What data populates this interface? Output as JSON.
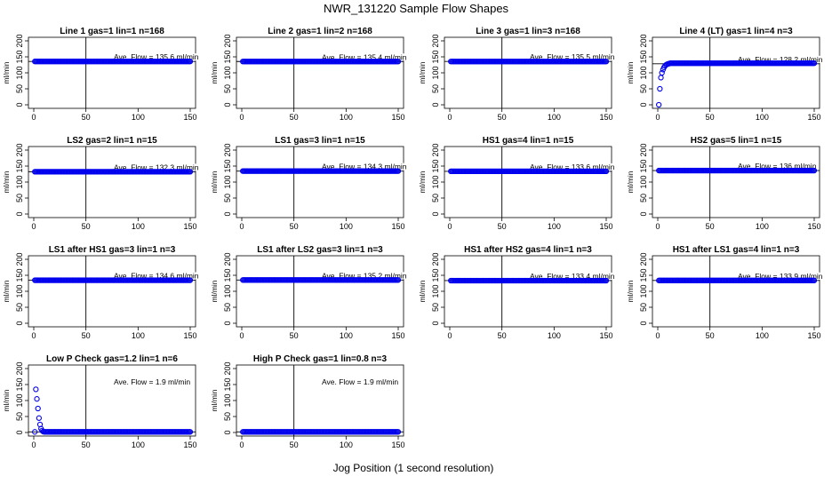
{
  "title": "NWR_131220  Sample Flow Shapes",
  "xlabel": "Jog Position (1 second resolution)",
  "colors": {
    "points": "#0000ee",
    "axis": "#000000",
    "background": "#ffffff"
  },
  "chart_data": [
    {
      "type": "scatter",
      "title": "Line 1 gas=1 lin=1 n=168",
      "ylabel": "ml/min",
      "ave_text": "Ave. Flow = 135.6  ml/min",
      "level": 135.6,
      "xlim": [
        0,
        150
      ],
      "ylim": [
        0,
        200
      ],
      "xticks": [
        0,
        50,
        100,
        150
      ],
      "yticks": [
        0,
        50,
        100,
        150,
        200
      ],
      "vline": 50,
      "hline": 135.6,
      "rise": []
    },
    {
      "type": "scatter",
      "title": "Line 2 gas=1 lin=2 n=168",
      "ylabel": "ml/min",
      "ave_text": "Ave. Flow = 135.4  ml/min",
      "level": 135.4,
      "xlim": [
        0,
        150
      ],
      "ylim": [
        0,
        200
      ],
      "xticks": [
        0,
        50,
        100,
        150
      ],
      "yticks": [
        0,
        50,
        100,
        150,
        200
      ],
      "vline": 50,
      "hline": 135.4,
      "rise": []
    },
    {
      "type": "scatter",
      "title": "Line 3 gas=1 lin=3 n=168",
      "ylabel": "ml/min",
      "ave_text": "Ave. Flow = 135.5  ml/min",
      "level": 135.5,
      "xlim": [
        0,
        150
      ],
      "ylim": [
        0,
        200
      ],
      "xticks": [
        0,
        50,
        100,
        150
      ],
      "yticks": [
        0,
        50,
        100,
        150,
        200
      ],
      "vline": 50,
      "hline": 135.5,
      "rise": []
    },
    {
      "type": "scatter",
      "title": "Line 4 (LT) gas=1 lin=4 n=3",
      "ylabel": "ml/min",
      "ave_text": "Ave. Flow = 128.2  ml/min",
      "level": 130,
      "xlim": [
        0,
        150
      ],
      "ylim": [
        0,
        200
      ],
      "xticks": [
        0,
        50,
        100,
        150
      ],
      "yticks": [
        0,
        50,
        100,
        150,
        200
      ],
      "vline": 50,
      "hline": 128.2,
      "rise": [
        [
          1,
          0
        ],
        [
          2,
          50
        ],
        [
          3,
          85
        ],
        [
          4,
          100
        ],
        [
          5,
          110
        ],
        [
          6,
          117
        ],
        [
          7,
          122
        ],
        [
          8,
          125
        ],
        [
          9,
          127
        ],
        [
          10,
          128
        ],
        [
          11,
          129
        ]
      ]
    },
    {
      "type": "scatter",
      "title": "LS2 gas=2 lin=1 n=15",
      "ylabel": "ml/min",
      "ave_text": "Ave. Flow = 132.3  ml/min",
      "level": 132.3,
      "xlim": [
        0,
        150
      ],
      "ylim": [
        0,
        200
      ],
      "xticks": [
        0,
        50,
        100,
        150
      ],
      "yticks": [
        0,
        50,
        100,
        150,
        200
      ],
      "vline": 50,
      "hline": 132.3,
      "rise": []
    },
    {
      "type": "scatter",
      "title": "LS1 gas=3 lin=1 n=15",
      "ylabel": "ml/min",
      "ave_text": "Ave. Flow = 134.3  ml/min",
      "level": 134.3,
      "xlim": [
        0,
        150
      ],
      "ylim": [
        0,
        200
      ],
      "xticks": [
        0,
        50,
        100,
        150
      ],
      "yticks": [
        0,
        50,
        100,
        150,
        200
      ],
      "vline": 50,
      "hline": 134.3,
      "rise": []
    },
    {
      "type": "scatter",
      "title": "HS1 gas=4 lin=1 n=15",
      "ylabel": "ml/min",
      "ave_text": "Ave. Flow = 133.6  ml/min",
      "level": 133.6,
      "xlim": [
        0,
        150
      ],
      "ylim": [
        0,
        200
      ],
      "xticks": [
        0,
        50,
        100,
        150
      ],
      "yticks": [
        0,
        50,
        100,
        150,
        200
      ],
      "vline": 50,
      "hline": 133.6,
      "rise": []
    },
    {
      "type": "scatter",
      "title": "HS2 gas=5 lin=1 n=15",
      "ylabel": "ml/min",
      "ave_text": "Ave. Flow = 136  ml/min",
      "level": 136,
      "xlim": [
        0,
        150
      ],
      "ylim": [
        0,
        200
      ],
      "xticks": [
        0,
        50,
        100,
        150
      ],
      "yticks": [
        0,
        50,
        100,
        150,
        200
      ],
      "vline": 50,
      "hline": 136,
      "rise": []
    },
    {
      "type": "scatter",
      "title": "LS1 after HS1 gas=3 lin=1 n=3",
      "ylabel": "ml/min",
      "ave_text": "Ave. Flow = 134.6  ml/min",
      "level": 134.6,
      "xlim": [
        0,
        150
      ],
      "ylim": [
        0,
        200
      ],
      "xticks": [
        0,
        50,
        100,
        150
      ],
      "yticks": [
        0,
        50,
        100,
        150,
        200
      ],
      "vline": 50,
      "hline": 134.6,
      "rise": []
    },
    {
      "type": "scatter",
      "title": "LS1 after LS2 gas=3 lin=1 n=3",
      "ylabel": "ml/min",
      "ave_text": "Ave. Flow = 135.2  ml/min",
      "level": 135.2,
      "xlim": [
        0,
        150
      ],
      "ylim": [
        0,
        200
      ],
      "xticks": [
        0,
        50,
        100,
        150
      ],
      "yticks": [
        0,
        50,
        100,
        150,
        200
      ],
      "vline": 50,
      "hline": 135.2,
      "rise": []
    },
    {
      "type": "scatter",
      "title": "HS1 after HS2 gas=4 lin=1 n=3",
      "ylabel": "ml/min",
      "ave_text": "Ave. Flow = 133.4  ml/min",
      "level": 133.4,
      "xlim": [
        0,
        150
      ],
      "ylim": [
        0,
        200
      ],
      "xticks": [
        0,
        50,
        100,
        150
      ],
      "yticks": [
        0,
        50,
        100,
        150,
        200
      ],
      "vline": 50,
      "hline": 133.4,
      "rise": []
    },
    {
      "type": "scatter",
      "title": "HS1 after LS1 gas=4 lin=1 n=3",
      "ylabel": "ml/min",
      "ave_text": "Ave. Flow = 133.9  ml/min",
      "level": 133.9,
      "xlim": [
        0,
        150
      ],
      "ylim": [
        0,
        200
      ],
      "xticks": [
        0,
        50,
        100,
        150
      ],
      "yticks": [
        0,
        50,
        100,
        150,
        200
      ],
      "vline": 50,
      "hline": 133.9,
      "rise": []
    },
    {
      "type": "scatter",
      "title": "Low P Check gas=1.2 lin=1 n=6",
      "ylabel": "ml/min",
      "ave_text": "Ave. Flow =  1.9  ml/min",
      "level": 1.9,
      "xlim": [
        0,
        150
      ],
      "ylim": [
        0,
        200
      ],
      "xticks": [
        0,
        50,
        100,
        150
      ],
      "yticks": [
        0,
        50,
        100,
        150,
        200
      ],
      "vline": 50,
      "hline": 1.9,
      "rise": [
        [
          2,
          135
        ],
        [
          3,
          105
        ],
        [
          4,
          75
        ],
        [
          5,
          45
        ],
        [
          6,
          25
        ],
        [
          7,
          12
        ],
        [
          8,
          6
        ],
        [
          9,
          3
        ]
      ]
    },
    {
      "type": "scatter",
      "title": "High P Check gas=1 lin=0.8 n=3",
      "ylabel": "ml/min",
      "ave_text": "Ave. Flow =  1.9  ml/min",
      "level": 1.9,
      "xlim": [
        0,
        150
      ],
      "ylim": [
        0,
        200
      ],
      "xticks": [
        0,
        50,
        100,
        150
      ],
      "yticks": [
        0,
        50,
        100,
        150,
        200
      ],
      "vline": 50,
      "hline": 1.9,
      "rise": []
    }
  ]
}
